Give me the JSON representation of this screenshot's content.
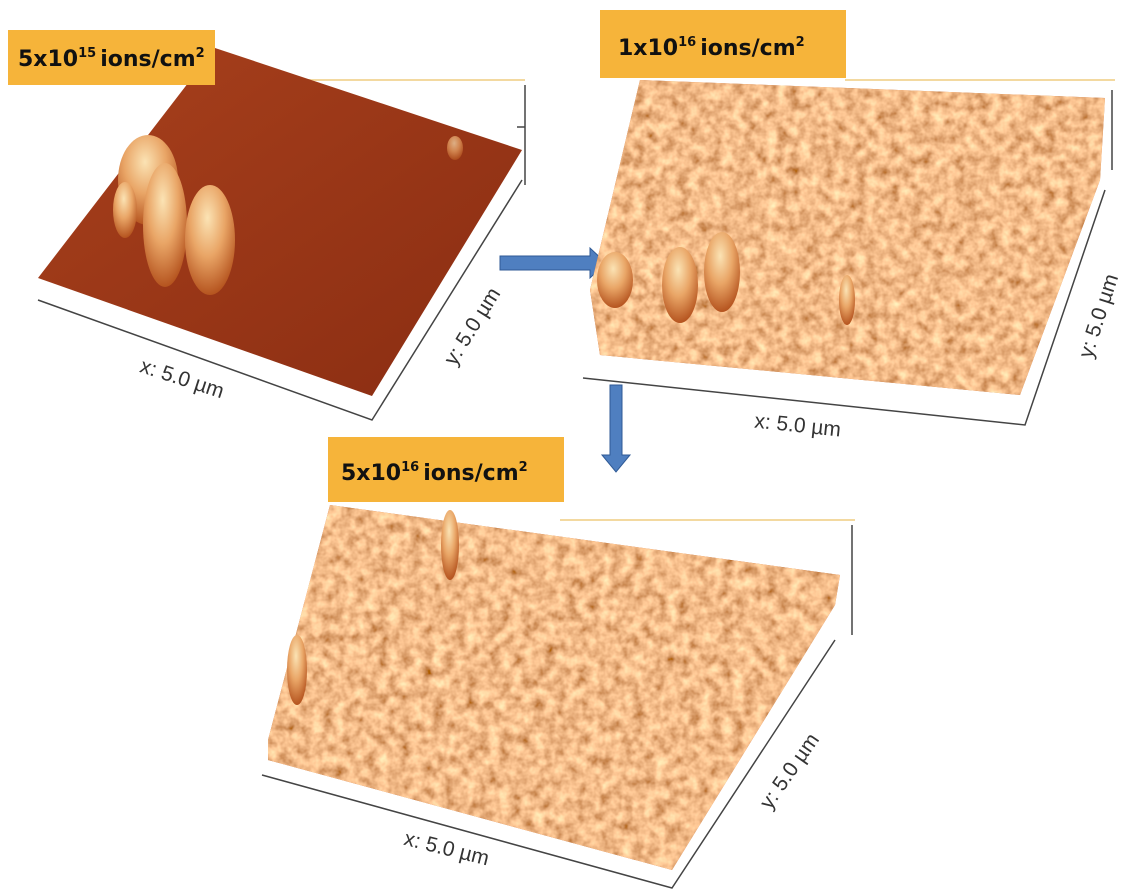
{
  "panels": [
    {
      "label": {
        "base": "5x10",
        "exponent": "15",
        "unit": "ions/cm",
        "unit_exponent": "2"
      },
      "x_axis": "x: 5.0 µm",
      "y_axis": "y: 5.0 µm"
    },
    {
      "label": {
        "base": "1x10",
        "exponent": "16",
        "unit": "ions/cm",
        "unit_exponent": "2"
      },
      "x_axis": "x: 5.0 µm",
      "y_axis": "y: 5.0 µm"
    },
    {
      "label": {
        "base": "5x10",
        "exponent": "16",
        "unit": "ions/cm",
        "unit_exponent": "2"
      },
      "x_axis": "x: 5.0 µm",
      "y_axis": "y: 5.0 µm"
    }
  ]
}
